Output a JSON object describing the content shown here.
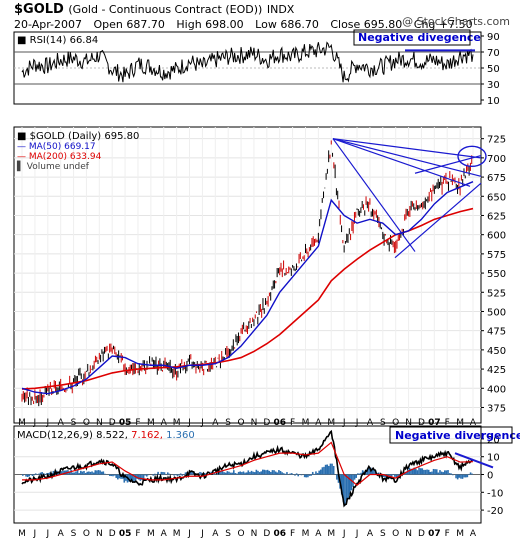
{
  "header": {
    "symbol": "$GOLD",
    "name": "(Gold - Continuous Contract (EOD))",
    "exchange": "INDX",
    "date": "20-Apr-2007",
    "open": "Open 687.70",
    "high": "High 698.00",
    "low": "Low 686.70",
    "close": "Close 695.80",
    "chg": "Chg +7.50 (+1.09%)",
    "watermark": "@ StockCharts.com"
  },
  "rsi_panel": {
    "legend": "RSI(14) 66.84",
    "annotation": "Negative divegence",
    "ticks": [
      "90",
      "70",
      "50",
      "30",
      "10"
    ]
  },
  "price_panel": {
    "legend_main": "$GOLD (Daily) 695.80",
    "legend_ma50": "MA(50) 669.17",
    "legend_ma200": "MA(200) 633.94",
    "legend_volume": "Volume undef",
    "ticks": [
      "725",
      "700",
      "675",
      "650",
      "625",
      "600",
      "575",
      "550",
      "525",
      "500",
      "475",
      "450",
      "425",
      "400",
      "375"
    ]
  },
  "macd_panel": {
    "legend_label": "MACD(12,26,9)",
    "legend_v1": "8.522,",
    "legend_v2": "7.162,",
    "legend_v3": "1.360",
    "annotation": "Negative divergence",
    "ticks": [
      "20",
      "10",
      "0",
      "-10",
      "-20"
    ]
  },
  "x_axis": [
    "M",
    "J",
    "J",
    "A",
    "S",
    "O",
    "N",
    "D",
    "05",
    "F",
    "M",
    "A",
    "M",
    "J",
    "J",
    "A",
    "S",
    "O",
    "N",
    "D",
    "06",
    "F",
    "M",
    "A",
    "M",
    "J",
    "J",
    "A",
    "S",
    "O",
    "N",
    "D",
    "07",
    "F",
    "M",
    "A"
  ],
  "colors": {
    "price": "#000000",
    "ma50": "#1010c8",
    "ma200": "#dd0000",
    "trendline": "#1a1ad0",
    "annotation": "#0000cc",
    "signal": "#dd0000",
    "histogram": "#2a6fb0"
  },
  "chart_data": [
    {
      "type": "line",
      "title": "RSI(14) 66.84",
      "ylim": [
        10,
        90
      ],
      "reference_lines": [
        70,
        30
      ],
      "x": [
        "M",
        "J",
        "J",
        "A",
        "S",
        "O",
        "N",
        "D",
        "05",
        "F",
        "M",
        "A",
        "M",
        "J",
        "J",
        "A",
        "S",
        "O",
        "N",
        "D",
        "06",
        "F",
        "M",
        "A",
        "M",
        "J",
        "J",
        "A",
        "S",
        "O",
        "N",
        "D",
        "07",
        "F",
        "M",
        "A"
      ],
      "series": [
        {
          "name": "RSI(14)",
          "values": [
            45,
            55,
            52,
            60,
            62,
            58,
            66,
            48,
            40,
            55,
            52,
            45,
            48,
            58,
            52,
            60,
            64,
            66,
            68,
            60,
            68,
            64,
            70,
            72,
            76,
            38,
            55,
            50,
            52,
            60,
            62,
            58,
            60,
            54,
            66,
            67
          ]
        }
      ]
    },
    {
      "type": "line",
      "title": "$GOLD (Daily) 695.80",
      "ylim": [
        360,
        735
      ],
      "x": [
        "M",
        "J",
        "J",
        "A",
        "S",
        "O",
        "N",
        "D",
        "05",
        "F",
        "M",
        "A",
        "M",
        "J",
        "J",
        "A",
        "S",
        "O",
        "N",
        "D",
        "06",
        "F",
        "M",
        "A",
        "M",
        "J",
        "J",
        "A",
        "S",
        "O",
        "N",
        "D",
        "07",
        "F",
        "M",
        "A"
      ],
      "series": [
        {
          "name": "$GOLD (Daily) 695.80",
          "values": [
            393,
            385,
            395,
            400,
            407,
            420,
            440,
            452,
            427,
            425,
            432,
            428,
            422,
            435,
            427,
            433,
            445,
            470,
            488,
            513,
            550,
            555,
            575,
            600,
            720,
            580,
            630,
            640,
            600,
            583,
            630,
            640,
            660,
            670,
            663,
            695.8
          ]
        },
        {
          "name": "MA(50) 669.17",
          "values": [
            400,
            395,
            393,
            397,
            403,
            412,
            427,
            442,
            440,
            432,
            430,
            430,
            426,
            430,
            430,
            432,
            440,
            455,
            475,
            495,
            525,
            545,
            565,
            585,
            645,
            625,
            615,
            620,
            615,
            600,
            605,
            620,
            640,
            655,
            662,
            669
          ]
        },
        {
          "name": "MA(200) 633.94",
          "values": [
            399,
            400,
            402,
            404,
            407,
            410,
            415,
            420,
            423,
            425,
            426,
            427,
            428,
            430,
            431,
            433,
            436,
            440,
            448,
            458,
            470,
            485,
            500,
            515,
            540,
            555,
            568,
            580,
            590,
            600,
            605,
            612,
            620,
            625,
            630,
            634
          ]
        }
      ]
    },
    {
      "type": "line",
      "title": "MACD(12,26,9) 8.522, 7.162, 1.360",
      "ylim": [
        -25,
        25
      ],
      "x": [
        "M",
        "J",
        "J",
        "A",
        "S",
        "O",
        "N",
        "D",
        "05",
        "F",
        "M",
        "A",
        "M",
        "J",
        "J",
        "A",
        "S",
        "O",
        "N",
        "D",
        "06",
        "F",
        "M",
        "A",
        "M",
        "J",
        "J",
        "A",
        "S",
        "O",
        "N",
        "D",
        "07",
        "F",
        "M",
        "A"
      ],
      "series": [
        {
          "name": "MACD",
          "values": [
            -4,
            -3,
            -1,
            2,
            4,
            5,
            8,
            6,
            -2,
            -5,
            -3,
            -2,
            -3,
            1,
            -1,
            2,
            5,
            6,
            10,
            12,
            14,
            12,
            10,
            14,
            25,
            -18,
            -5,
            4,
            -2,
            -3,
            5,
            8,
            10,
            12,
            4,
            8.5
          ]
        },
        {
          "name": "Signal",
          "values": [
            -3,
            -3,
            -2,
            0,
            2,
            4,
            6,
            7,
            2,
            -2,
            -3,
            -3,
            -2,
            -1,
            -1,
            1,
            3,
            5,
            8,
            10,
            12,
            12,
            11,
            12,
            18,
            0,
            -6,
            0,
            0,
            -2,
            2,
            5,
            8,
            10,
            7,
            7.2
          ]
        },
        {
          "name": "Histogram",
          "values": [
            -1,
            0,
            1,
            2,
            2,
            1,
            2,
            -1,
            -4,
            -3,
            0,
            1,
            -1,
            2,
            0,
            1,
            2,
            1,
            2,
            2,
            2,
            0,
            -1,
            2,
            7,
            -18,
            1,
            4,
            -2,
            -1,
            3,
            3,
            2,
            2,
            -3,
            1.4
          ]
        }
      ]
    }
  ]
}
